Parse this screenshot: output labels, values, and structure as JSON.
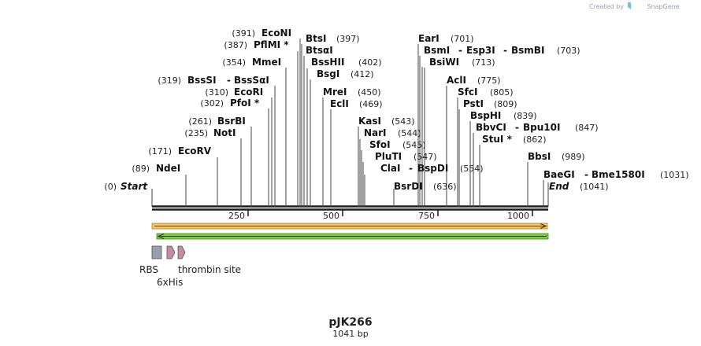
{
  "brand": {
    "created_by": "Created by",
    "name": "SnapGene"
  },
  "plasmid": {
    "name": "pJK266",
    "length_label": "1041 bp",
    "length": 1041
  },
  "scale": {
    "ticks": [
      250,
      500,
      750,
      1000
    ]
  },
  "sites": [
    {
      "id": "start",
      "label": "Start",
      "pos": "(0)",
      "position": 0,
      "italic": true
    },
    {
      "id": "ndei",
      "label": "NdeI",
      "pos": "(89)",
      "position": 89
    },
    {
      "id": "ecorv",
      "label": "EcoRV",
      "pos": "(171)",
      "position": 171
    },
    {
      "id": "noti",
      "label": "NotI",
      "pos": "(235)",
      "position": 235
    },
    {
      "id": "bsrbi",
      "label": "BsrBI",
      "pos": "(261)",
      "position": 261
    },
    {
      "id": "pfoi",
      "label": "PfoI *",
      "pos": "(302)",
      "position": 302
    },
    {
      "id": "ecori",
      "label": "EcoRI",
      "pos": "(310)",
      "position": 310
    },
    {
      "id": "bsssi",
      "label": "BssSI",
      "alt": "BssSαI",
      "pos": "(319)",
      "position": 319
    },
    {
      "id": "mmei",
      "label": "MmeI",
      "pos": "(354)",
      "position": 354
    },
    {
      "id": "pflmi",
      "label": "PflMI *",
      "pos": "(387)",
      "position": 387
    },
    {
      "id": "econi",
      "label": "EcoNI",
      "pos": "(391)",
      "position": 391
    },
    {
      "id": "btsi",
      "label": "BtsI",
      "pos": "(397)",
      "position": 397
    },
    {
      "id": "btsai",
      "label": "BtsαI",
      "position": 397
    },
    {
      "id": "bsshii",
      "label": "BssHII",
      "pos": "(402)",
      "position": 402
    },
    {
      "id": "bsgi",
      "label": "BsgI",
      "pos": "(412)",
      "position": 412
    },
    {
      "id": "mrei",
      "label": "MreI",
      "pos": "(450)",
      "position": 450
    },
    {
      "id": "ecli",
      "label": "EclI",
      "pos": "(469)",
      "position": 469
    },
    {
      "id": "kasi",
      "label": "KasI",
      "pos": "(543)",
      "position": 543
    },
    {
      "id": "nari",
      "label": "NarI",
      "pos": "(544)",
      "position": 544
    },
    {
      "id": "sfoi",
      "label": "SfoI",
      "pos": "(545)",
      "position": 545
    },
    {
      "id": "pluti",
      "label": "PluTI",
      "pos": "(547)",
      "position": 547
    },
    {
      "id": "clai",
      "label": "ClaI",
      "alt": "BspDI",
      "pos": "(554)",
      "position": 554
    },
    {
      "id": "bsrdi",
      "label": "BsrDI",
      "pos": "(636)",
      "position": 636
    },
    {
      "id": "eari",
      "label": "EarI",
      "pos": "(701)",
      "position": 701
    },
    {
      "id": "bsmi",
      "label": "BsmI",
      "alt": "Esp3I",
      "alt2": "BsmBI",
      "pos": "(703)",
      "position": 703
    },
    {
      "id": "bsiwi",
      "label": "BsiWI",
      "pos": "(713)",
      "position": 713
    },
    {
      "id": "acli",
      "label": "AclI",
      "pos": "(775)",
      "position": 775
    },
    {
      "id": "sfci",
      "label": "SfcI",
      "pos": "(805)",
      "position": 805
    },
    {
      "id": "psti",
      "label": "PstI",
      "pos": "(809)",
      "position": 809
    },
    {
      "id": "bsphi",
      "label": "BspHI",
      "pos": "(839)",
      "position": 839
    },
    {
      "id": "bbvci",
      "label": "BbvCI",
      "alt": "Bpu10I",
      "pos": "(847)",
      "position": 847
    },
    {
      "id": "stui",
      "label": "StuI *",
      "pos": "(862)",
      "position": 862
    },
    {
      "id": "bbsi",
      "label": "BbsI",
      "pos": "(989)",
      "position": 989
    },
    {
      "id": "baegi",
      "label": "BaeGI",
      "alt": "Bme1580I",
      "pos": "(1031)",
      "position": 1031
    },
    {
      "id": "end",
      "label": "End",
      "pos": "(1041)",
      "position": 1041,
      "italic": true
    }
  ],
  "features": [
    {
      "id": "rbs",
      "label": "RBS",
      "color": "#9aa0ab"
    },
    {
      "id": "his",
      "label": "6xHis",
      "color": "#c58aa6"
    },
    {
      "id": "thrombin",
      "label": "thrombin site",
      "color": "#c58aa6"
    }
  ],
  "colors": {
    "orf_forward": "#f5c46b",
    "orf_reverse": "#7ccd3c",
    "backbone": "#1a1a1a"
  }
}
